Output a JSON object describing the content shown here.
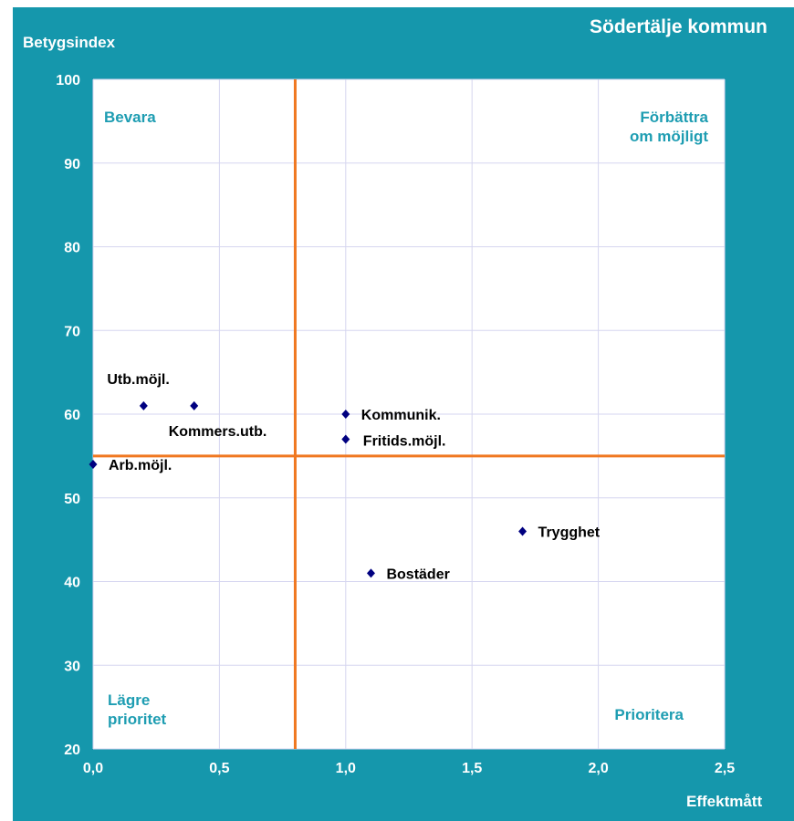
{
  "chart_data": {
    "type": "scatter",
    "title": "Södertälje kommun",
    "ylabel": "Betygsindex",
    "xlabel": "Effektmått",
    "xlim": [
      0,
      2.5
    ],
    "ylim": [
      20,
      100
    ],
    "x_ticks": [
      "0,0",
      "0,5",
      "1,0",
      "1,5",
      "2,0",
      "2,5"
    ],
    "y_ticks": [
      "20",
      "30",
      "40",
      "50",
      "60",
      "70",
      "80",
      "90",
      "100"
    ],
    "grid": true,
    "reference_lines": {
      "x": 0.8,
      "y": 55
    },
    "quadrant_labels": {
      "top_left": "Bevara",
      "top_right": [
        "Förbättra",
        "om möjligt"
      ],
      "bottom_left": [
        "Lägre",
        "prioritet"
      ],
      "bottom_right": "Prioritera"
    },
    "points": [
      {
        "label": "Utb.möjl.",
        "x": 0.2,
        "y": 61
      },
      {
        "label": "Kommers.utb.",
        "x": 0.4,
        "y": 61
      },
      {
        "label": "Arb.möjl.",
        "x": 0.0,
        "y": 54
      },
      {
        "label": "Kommunik.",
        "x": 1.0,
        "y": 60
      },
      {
        "label": "Fritids.möjl.",
        "x": 1.0,
        "y": 57
      },
      {
        "label": "Trygghet",
        "x": 1.7,
        "y": 46
      },
      {
        "label": "Bostäder",
        "x": 1.1,
        "y": 41
      }
    ],
    "colors": {
      "frame": "#1597AC",
      "plot_bg": "#ffffff",
      "grid": "#D6D6F0",
      "reference_line": "#F07820",
      "marker": "#000080",
      "quadrant_text": "#1E9DB2",
      "axis_text": "#ffffff",
      "point_label": "#000000"
    }
  }
}
